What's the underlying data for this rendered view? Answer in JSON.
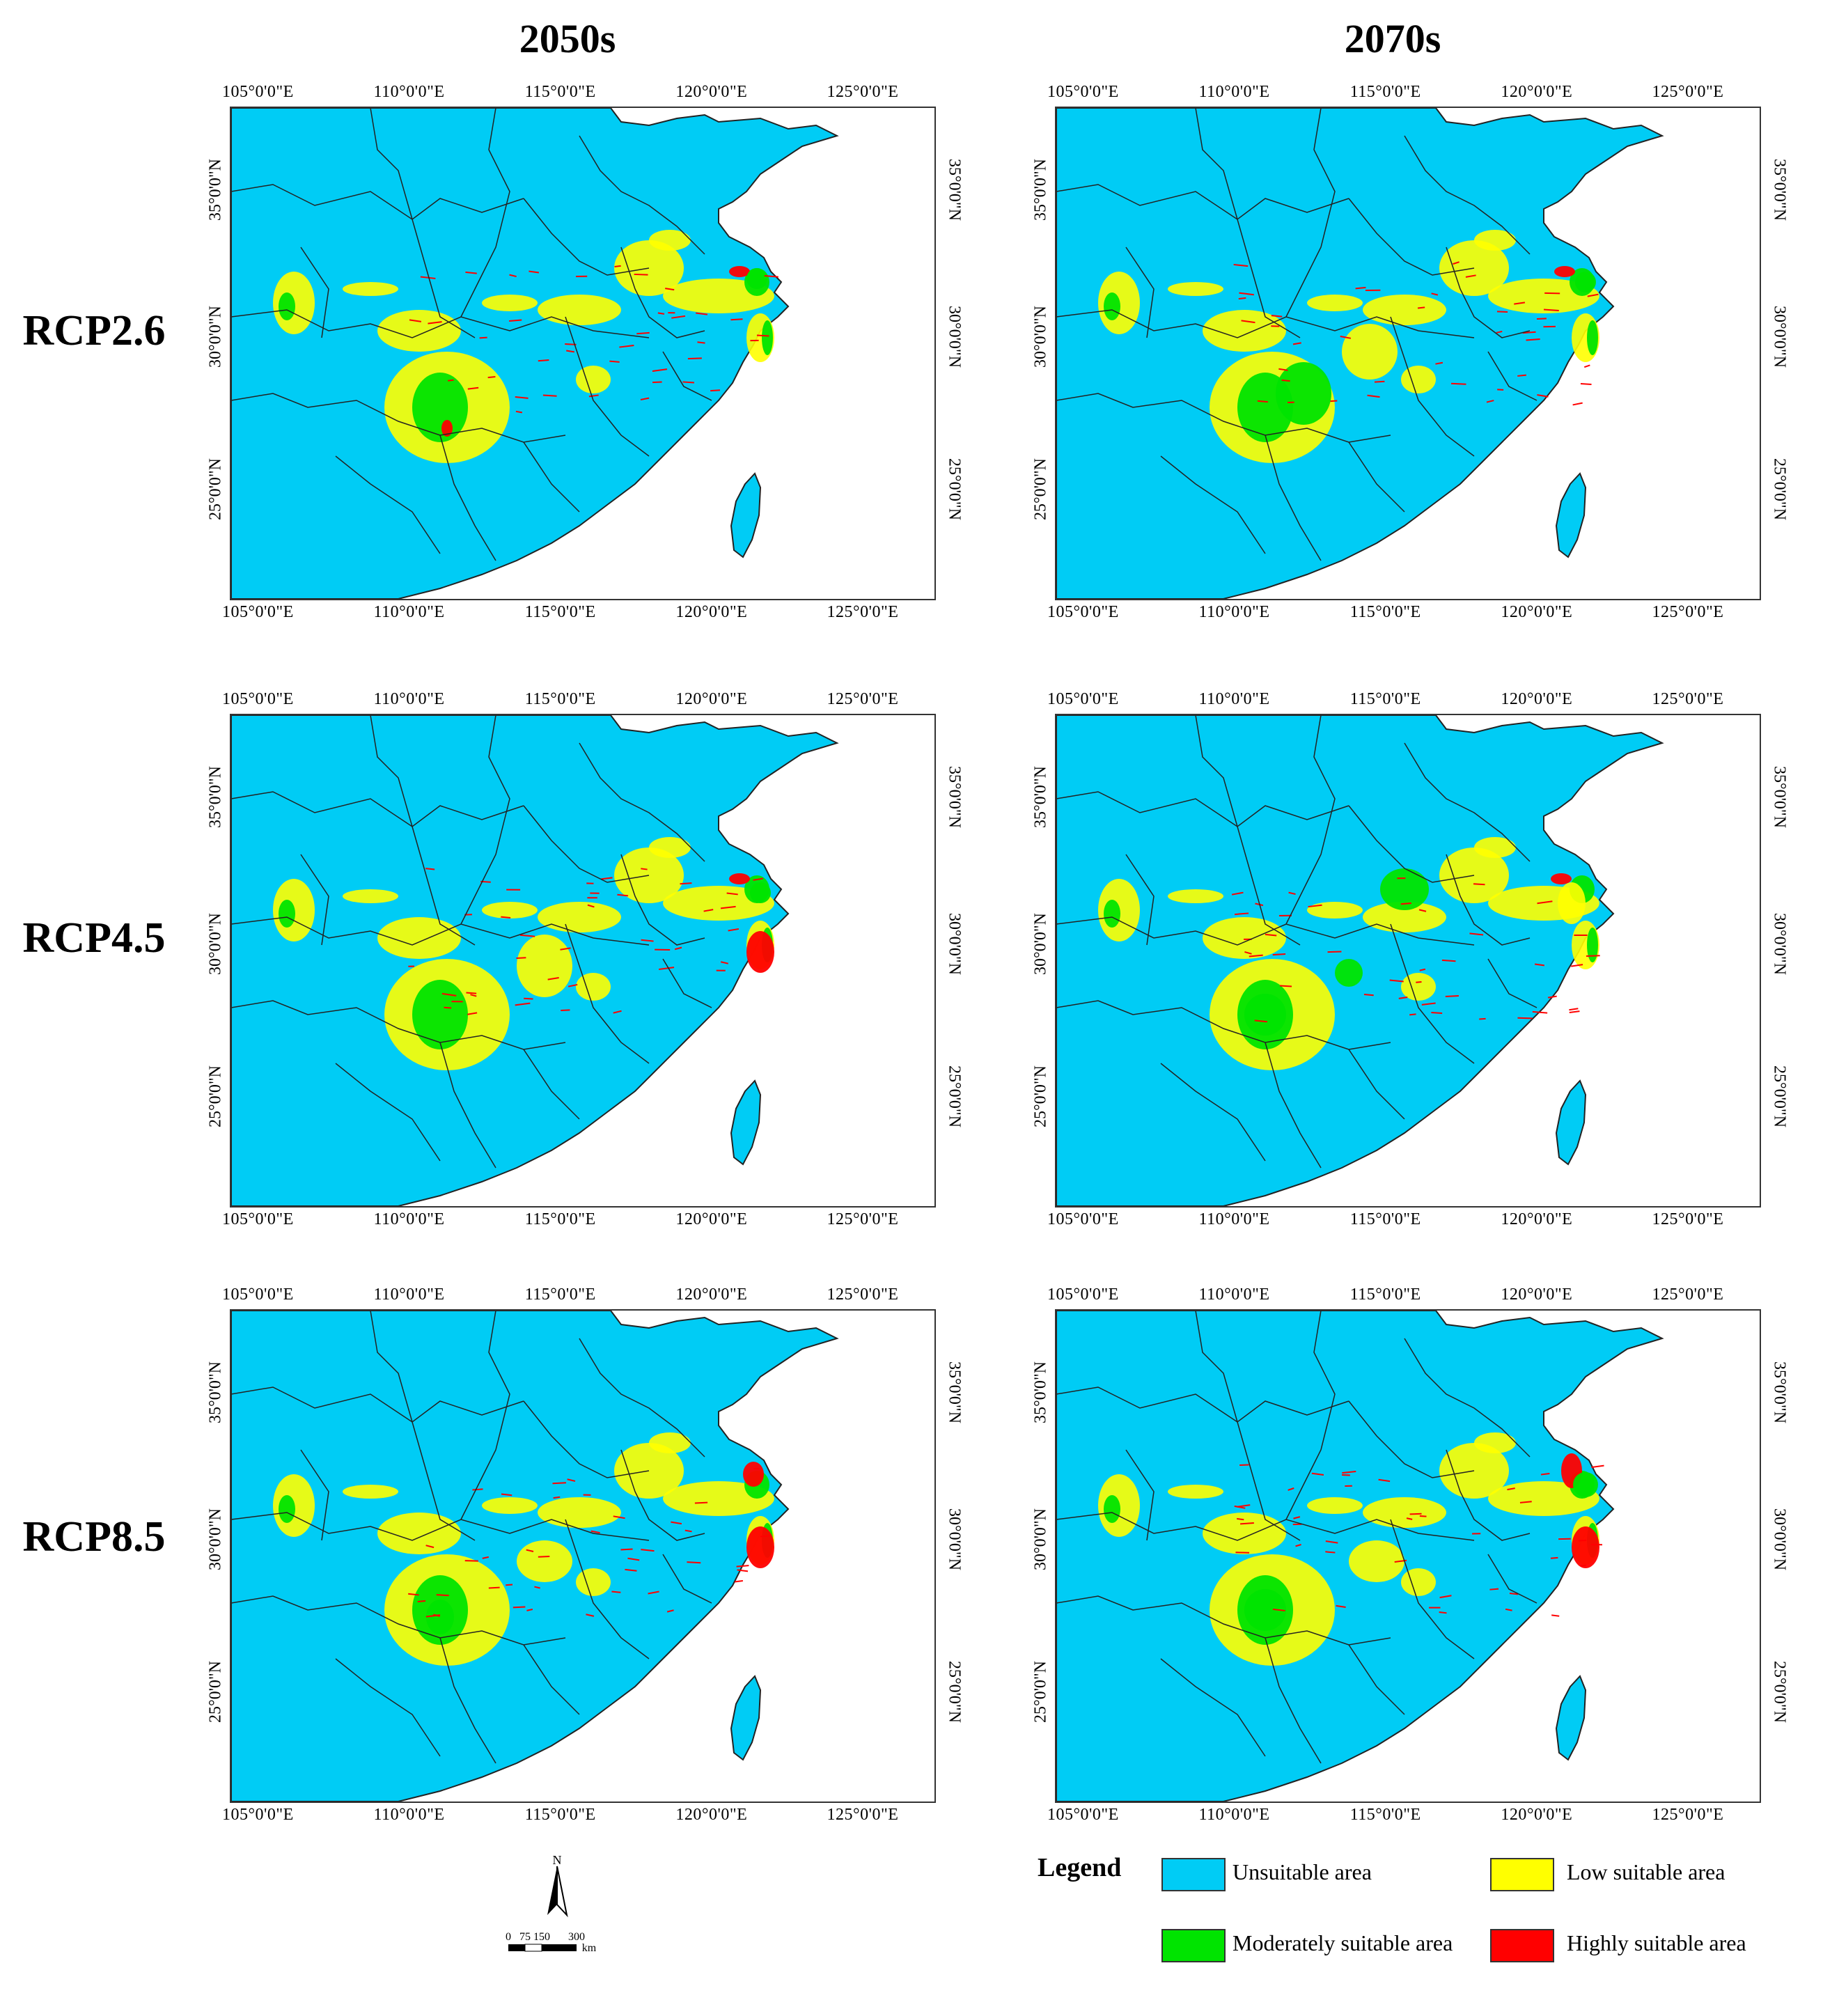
{
  "columns": [
    "2050s",
    "2070s"
  ],
  "rows": [
    "RCP2.6",
    "RCP4.5",
    "RCP8.5"
  ],
  "lon_ticks": [
    "105°0'0\"E",
    "110°0'0\"E",
    "115°0'0\"E",
    "120°0'0\"E",
    "125°0'0\"E"
  ],
  "lat_ticks": [
    "35°0'0\"N",
    "30°0'0\"N",
    "25°0'0\"N"
  ],
  "legend": {
    "title": "Legend",
    "items": [
      {
        "label": "Unsuitable area",
        "color": "#00CCF5"
      },
      {
        "label": "Low suitable area",
        "color": "#FFFF00"
      },
      {
        "label": "Moderately suitable area",
        "color": "#00E400"
      },
      {
        "label": "Highly suitable area",
        "color": "#FF0000"
      }
    ]
  },
  "scale_bar": {
    "labels": [
      "0",
      "75",
      "150",
      "300"
    ],
    "unit": "km"
  },
  "north_arrow": "N",
  "colors": {
    "sea": "#ffffff",
    "land": "#00CCF5",
    "border": "#222222"
  }
}
